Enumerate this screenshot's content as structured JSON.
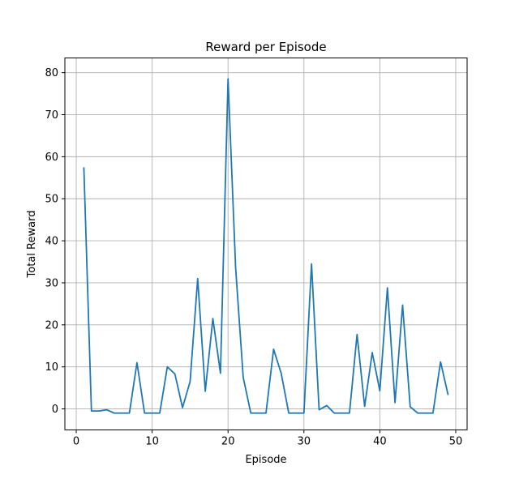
{
  "chart_data": {
    "type": "line",
    "title": "Reward per Episode",
    "xlabel": "Episode",
    "ylabel": "Total Reward",
    "xlim": [
      -1.5,
      51.5
    ],
    "ylim": [
      -5,
      83.5
    ],
    "xticks": [
      0,
      10,
      20,
      30,
      40,
      50
    ],
    "yticks": [
      0,
      10,
      20,
      30,
      40,
      50,
      60,
      70,
      80
    ],
    "grid": true,
    "legend": "none",
    "series": [
      {
        "color": "#1f77b4",
        "x": [
          1,
          2,
          3,
          4,
          5,
          6,
          7,
          8,
          9,
          10,
          11,
          12,
          13,
          14,
          15,
          16,
          17,
          18,
          19,
          20,
          21,
          22,
          23,
          24,
          25,
          26,
          27,
          28,
          29,
          30,
          31,
          32,
          33,
          34,
          35,
          36,
          37,
          38,
          39,
          40,
          41,
          42,
          43,
          44,
          45,
          46,
          47,
          48,
          49
        ],
        "y": [
          57.5,
          -0.5,
          -0.5,
          -0.2,
          -1,
          -1,
          -1,
          11,
          -1,
          -1,
          -1,
          10,
          8.3,
          0.3,
          6.5,
          31,
          4.2,
          21.5,
          8.5,
          78.5,
          33.5,
          7.5,
          -1,
          -1,
          -1,
          14.2,
          8.5,
          -1,
          -1,
          -1,
          34.5,
          -0.2,
          0.8,
          -1,
          -1,
          -1,
          17.7,
          0.6,
          13.4,
          4.3,
          28.8,
          1.5,
          24.7,
          0.5,
          -1,
          -1,
          -1,
          11.2,
          3.3
        ]
      }
    ]
  }
}
